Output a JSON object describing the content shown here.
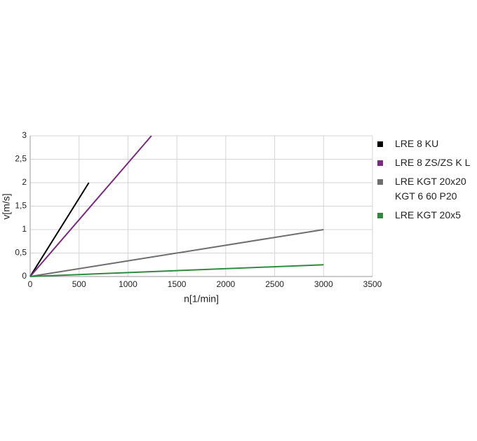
{
  "chart_data": {
    "type": "line",
    "xlabel": "n[1/min]",
    "ylabel": "v[m/s]",
    "xlim": [
      0,
      3500
    ],
    "xticks": [
      0,
      500,
      1000,
      1500,
      2000,
      2500,
      3000,
      3500
    ],
    "ylim": [
      0,
      3
    ],
    "yticks": [
      0,
      {
        "value": 0.5,
        "label": "0,5"
      },
      1,
      {
        "value": 1.5,
        "label": "1,5"
      },
      2,
      {
        "value": 2.5,
        "label": "2,5"
      },
      3
    ],
    "grid": true,
    "legend": "right",
    "series": [
      {
        "name": "LRE 8 KU",
        "color": "#000000",
        "x": [
          0,
          600
        ],
        "values": [
          0,
          2
        ]
      },
      {
        "name": "LRE 8 ZS/ZS K L",
        "color": "#7b2a7e",
        "x": [
          0,
          1240
        ],
        "values": [
          0,
          3
        ]
      },
      {
        "name": "LRE KGT 20x20\nKGT 6 60 P20",
        "color": "#6e6e6e",
        "x": [
          0,
          3000
        ],
        "values": [
          0,
          1
        ]
      },
      {
        "name": "LRE KGT 20x5",
        "color": "#2e8b3e",
        "x": [
          0,
          3000
        ],
        "values": [
          0,
          0.25
        ]
      }
    ]
  }
}
